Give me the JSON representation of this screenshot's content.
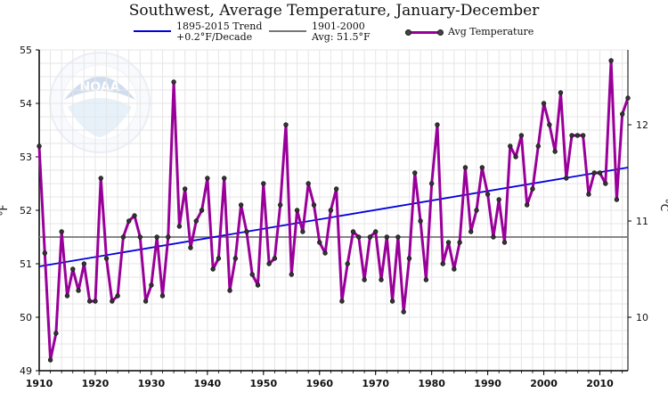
{
  "title": "Southwest, Average Temperature, January-December",
  "legend": {
    "trend_line1": "1895-2015 Trend",
    "trend_line2": "+0.2°F/Decade",
    "normal_line1": "1901-2000",
    "normal_line2": "Avg: 51.5°F",
    "avg_label": "Avg Temperature"
  },
  "colors": {
    "trend": "#0000e0",
    "normal": "#777777",
    "series": "#990099",
    "marker": "#333333",
    "grid": "#e6e6e6"
  },
  "chart_data": {
    "type": "line",
    "title": "Southwest, Average Temperature, January-December",
    "ylabel": "°F",
    "y2label": "°C",
    "xlim": [
      1910,
      2015
    ],
    "ylim": [
      49,
      55
    ],
    "x_ticks": [
      1910,
      1920,
      1930,
      1940,
      1950,
      1960,
      1970,
      1980,
      1990,
      2000,
      2010
    ],
    "y_ticks": [
      49,
      50,
      51,
      52,
      53,
      54,
      55
    ],
    "y2_ticks": [
      10,
      11,
      12
    ],
    "grid": true,
    "series": [
      {
        "name": "Avg Temperature",
        "x": [
          1910,
          1911,
          1912,
          1913,
          1914,
          1915,
          1916,
          1917,
          1918,
          1919,
          1920,
          1921,
          1922,
          1923,
          1924,
          1925,
          1926,
          1927,
          1928,
          1929,
          1930,
          1931,
          1932,
          1933,
          1934,
          1935,
          1936,
          1937,
          1938,
          1939,
          1940,
          1941,
          1942,
          1943,
          1944,
          1945,
          1946,
          1947,
          1948,
          1949,
          1950,
          1951,
          1952,
          1953,
          1954,
          1955,
          1956,
          1957,
          1958,
          1959,
          1960,
          1961,
          1962,
          1963,
          1964,
          1965,
          1966,
          1967,
          1968,
          1969,
          1970,
          1971,
          1972,
          1973,
          1974,
          1975,
          1976,
          1977,
          1978,
          1979,
          1980,
          1981,
          1982,
          1983,
          1984,
          1985,
          1986,
          1987,
          1988,
          1989,
          1990,
          1991,
          1992,
          1993,
          1994,
          1995,
          1996,
          1997,
          1998,
          1999,
          2000,
          2001,
          2002,
          2003,
          2004,
          2005,
          2006,
          2007,
          2008,
          2009,
          2010,
          2011,
          2012,
          2013,
          2014,
          2015
        ],
        "values": [
          53.2,
          51.2,
          49.2,
          49.7,
          51.6,
          50.4,
          50.9,
          50.5,
          51.0,
          50.3,
          50.3,
          52.6,
          51.1,
          50.3,
          50.4,
          51.5,
          51.8,
          51.9,
          51.5,
          50.3,
          50.6,
          51.5,
          50.4,
          51.5,
          54.4,
          51.7,
          52.4,
          51.3,
          51.8,
          52.0,
          52.6,
          50.9,
          51.1,
          52.6,
          50.5,
          51.1,
          52.1,
          51.6,
          50.8,
          50.6,
          52.5,
          51.0,
          51.1,
          52.1,
          53.6,
          50.8,
          52.0,
          51.6,
          52.5,
          52.1,
          51.4,
          51.2,
          52.0,
          52.4,
          50.3,
          51.0,
          51.6,
          51.5,
          50.7,
          51.5,
          51.6,
          50.7,
          51.5,
          50.3,
          51.5,
          50.1,
          51.1,
          52.7,
          51.8,
          50.7,
          52.5,
          53.6,
          51.0,
          51.4,
          50.9,
          51.4,
          52.8,
          51.6,
          52.0,
          52.8,
          52.3,
          51.5,
          52.2,
          51.4,
          53.2,
          53.0,
          53.4,
          52.1,
          52.4,
          53.2,
          54.0,
          53.6,
          53.1,
          54.2,
          52.6,
          53.4,
          53.4,
          53.4,
          52.3,
          52.7,
          52.7,
          52.5,
          54.8,
          52.2,
          53.8,
          54.1
        ]
      },
      {
        "name": "1895-2015 Trend",
        "x": [
          1910,
          2015
        ],
        "values": [
          50.95,
          52.8
        ]
      },
      {
        "name": "1901-2000",
        "x": [
          1910,
          2015
        ],
        "values": [
          51.5,
          51.5
        ]
      }
    ]
  }
}
